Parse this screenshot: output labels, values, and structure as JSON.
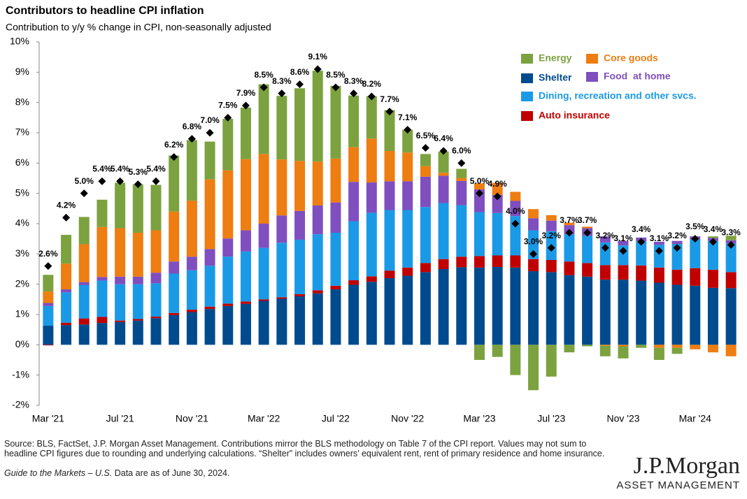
{
  "chart_data": {
    "type": "stacked_bar",
    "title": "Contributors to headline CPI inflation",
    "subtitle": "Contribution to y/y % change in CPI, non-seasonally adjusted",
    "categories": [
      "Mar '21",
      null,
      null,
      null,
      "Jul '21",
      null,
      null,
      null,
      "Nov '21",
      null,
      null,
      null,
      "Mar '22",
      null,
      null,
      null,
      "Jul '22",
      null,
      null,
      null,
      "Nov '22",
      null,
      null,
      null,
      "Mar '23",
      null,
      null,
      null,
      "Jul '23",
      null,
      null,
      null,
      "Nov '23",
      null,
      null,
      null,
      "Mar '24",
      null,
      null
    ],
    "ylim": [
      -2,
      10
    ],
    "yticks": [
      {
        "value": -2,
        "label": "-2%"
      },
      {
        "value": -1,
        "label": "-1%"
      },
      {
        "value": 0,
        "label": "0%"
      },
      {
        "value": 1,
        "label": "1%"
      },
      {
        "value": 2,
        "label": "2%"
      },
      {
        "value": 3,
        "label": "3%"
      },
      {
        "value": 4,
        "label": "4%"
      },
      {
        "value": 5,
        "label": "5%"
      },
      {
        "value": 6,
        "label": "6%"
      },
      {
        "value": 7,
        "label": "7%"
      },
      {
        "value": 8,
        "label": "8%"
      },
      {
        "value": 9,
        "label": "9%"
      },
      {
        "value": 10,
        "label": "10%"
      }
    ],
    "grid": false,
    "legend": "top-right",
    "series": [
      {
        "name": "Shelter",
        "color": "#004b8d",
        "values": [
          0.63,
          0.65,
          0.67,
          0.72,
          0.75,
          0.8,
          0.88,
          0.98,
          1.08,
          1.18,
          1.28,
          1.35,
          1.45,
          1.52,
          1.6,
          1.7,
          1.83,
          1.98,
          2.08,
          2.2,
          2.28,
          2.4,
          2.5,
          2.56,
          2.55,
          2.57,
          2.55,
          2.43,
          2.4,
          2.3,
          2.25,
          2.15,
          2.15,
          2.12,
          2.05,
          1.98,
          1.95,
          1.88,
          1.87
        ]
      },
      {
        "name": "Auto insurance",
        "color": "#c00000",
        "values": [
          -0.02,
          0.08,
          0.2,
          0.2,
          0.05,
          0.05,
          0.05,
          0.07,
          0.08,
          0.08,
          0.08,
          0.08,
          0.05,
          0.05,
          0.07,
          0.1,
          0.12,
          0.15,
          0.18,
          0.25,
          0.27,
          0.3,
          0.33,
          0.35,
          0.38,
          0.38,
          0.4,
          0.4,
          0.4,
          0.45,
          0.45,
          0.48,
          0.48,
          0.5,
          0.5,
          0.5,
          0.58,
          0.6,
          0.53
        ]
      },
      {
        "name": "Dining, recreation and other svcs.",
        "color": "#1a9ae6",
        "values": [
          0.65,
          1.0,
          1.1,
          1.2,
          1.2,
          1.15,
          1.1,
          1.3,
          1.3,
          1.35,
          1.55,
          1.65,
          1.7,
          1.8,
          1.8,
          1.85,
          1.75,
          1.95,
          2.1,
          2.0,
          1.9,
          1.85,
          1.85,
          1.7,
          1.45,
          1.4,
          1.3,
          0.95,
          0.95,
          0.9,
          0.9,
          0.75,
          0.65,
          0.8,
          0.75,
          0.85,
          0.95,
          0.95,
          0.95
        ]
      },
      {
        "name": "Food  at home",
        "color": "#7f4fbf",
        "values": [
          0.1,
          0.1,
          0.1,
          0.12,
          0.25,
          0.25,
          0.35,
          0.4,
          0.45,
          0.55,
          0.6,
          0.7,
          0.8,
          0.9,
          0.95,
          0.95,
          1.0,
          1.3,
          1.0,
          0.95,
          0.95,
          1.0,
          0.9,
          0.8,
          0.75,
          0.6,
          0.5,
          0.4,
          0.35,
          0.3,
          0.25,
          0.2,
          0.15,
          0.12,
          0.1,
          0.1,
          0.1,
          0.1,
          0.1
        ]
      },
      {
        "name": "Core goods",
        "color": "#ee7d12",
        "values": [
          0.38,
          0.85,
          1.25,
          1.65,
          1.6,
          1.45,
          1.4,
          1.65,
          1.85,
          2.3,
          2.25,
          2.35,
          2.3,
          1.85,
          1.65,
          1.45,
          1.45,
          1.15,
          1.45,
          1.0,
          0.95,
          0.35,
          0.1,
          0.1,
          0.2,
          0.4,
          0.3,
          0.3,
          0.18,
          0.08,
          0.05,
          -0.03,
          -0.05,
          0.0,
          -0.1,
          -0.1,
          -0.15,
          -0.25,
          -0.38
        ]
      },
      {
        "name": "Energy",
        "color": "#7ba23f",
        "values": [
          0.55,
          0.95,
          0.9,
          0.9,
          1.5,
          1.6,
          1.5,
          1.85,
          2.0,
          1.25,
          1.7,
          1.7,
          2.3,
          2.1,
          2.4,
          3.0,
          2.4,
          1.7,
          1.4,
          1.35,
          0.75,
          0.4,
          0.7,
          0.3,
          -0.5,
          -0.4,
          -1.0,
          -1.5,
          -1.05,
          -0.25,
          -0.05,
          -0.35,
          -0.4,
          -0.1,
          -0.4,
          -0.2,
          0.0,
          0.05,
          0.15
        ]
      }
    ],
    "markers": {
      "color": "#000000",
      "values": [
        2.6,
        4.2,
        5.0,
        5.4,
        5.4,
        5.3,
        5.4,
        6.2,
        6.8,
        7.0,
        7.5,
        7.9,
        8.5,
        8.3,
        8.6,
        9.1,
        8.5,
        8.3,
        8.2,
        7.7,
        7.1,
        6.5,
        6.4,
        6.0,
        5.0,
        4.9,
        4.0,
        3.0,
        3.2,
        3.7,
        3.7,
        3.2,
        3.1,
        3.4,
        3.1,
        3.2,
        3.5,
        3.4,
        3.3
      ],
      "value_labels": [
        "2.6%",
        "4.2%",
        "5.0%",
        "5.4%",
        "5.4%",
        "5.3%",
        "5.4%",
        "6.2%",
        "6.8%",
        "7.0%",
        "7.5%",
        "7.9%",
        "8.5%",
        "8.3%",
        "8.6%",
        "9.1%",
        "8.5%",
        "8.3%",
        "8.2%",
        "7.7%",
        "7.1%",
        "6.5%",
        "6.4%",
        "6.0%",
        "5.0%",
        "4.9%",
        "4.0%",
        "3.0%",
        "3.2%",
        "3.7%",
        "3.7%",
        "3.2%",
        "3.1%",
        "3.4%",
        "3.1%",
        "3.2%",
        "3.5%",
        "3.4%",
        "3.3%"
      ]
    },
    "source": "Source: BLS, FactSet, J.P. Morgan Asset Management. Contributions mirror the BLS methodology on Table 7 of the CPI report. Values may not sum to headline CPI figures due to rounding and underlying calculations. “Shelter” includes owners’ equivalent rent, rent of primary residence and home insurance.",
    "guide": "Guide to the Markets – U.S.",
    "as_of": "Data are as of June 30, 2024.",
    "brand": "J.P.Morgan",
    "brand_sub": "ASSET MANAGEMENT"
  }
}
